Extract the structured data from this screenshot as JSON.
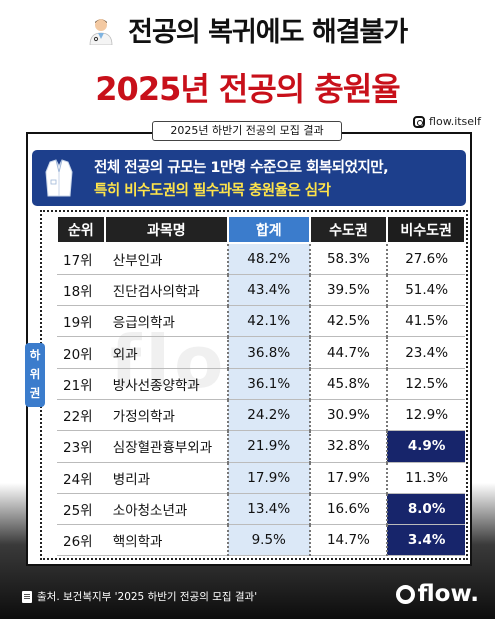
{
  "header": {
    "title_line1": "전공의 복귀에도 해결불가",
    "title_line2": "2025년 전공의 충원율",
    "handle": "flow.itself"
  },
  "panel": {
    "subtitle": "2025년 하반기 전공의 모집 결과",
    "banner_line1": "전체 전공의 규모는 1만명 수준으로 회복되었지만,",
    "banner_line2": "특히 비수도권의 필수과목 충원율은 심각"
  },
  "table": {
    "headers": [
      "순위",
      "과목명",
      "합계",
      "수도권",
      "비수도권"
    ],
    "rows": [
      {
        "rank": "17위",
        "subject": "산부인과",
        "total": "48.2%",
        "sudo": "58.3%",
        "bisudo": "27.6%",
        "dark": false
      },
      {
        "rank": "18위",
        "subject": "진단검사의학과",
        "total": "43.4%",
        "sudo": "39.5%",
        "bisudo": "51.4%",
        "dark": false
      },
      {
        "rank": "19위",
        "subject": "응급의학과",
        "total": "42.1%",
        "sudo": "42.5%",
        "bisudo": "41.5%",
        "dark": false
      },
      {
        "rank": "20위",
        "subject": "외과",
        "total": "36.8%",
        "sudo": "44.7%",
        "bisudo": "23.4%",
        "dark": false
      },
      {
        "rank": "21위",
        "subject": "방사선종양학과",
        "total": "36.1%",
        "sudo": "45.8%",
        "bisudo": "12.5%",
        "dark": false
      },
      {
        "rank": "22위",
        "subject": "가정의학과",
        "total": "24.2%",
        "sudo": "30.9%",
        "bisudo": "12.9%",
        "dark": false
      },
      {
        "rank": "23위",
        "subject": "심장혈관흉부외과",
        "total": "21.9%",
        "sudo": "32.8%",
        "bisudo": "4.9%",
        "dark": true
      },
      {
        "rank": "24위",
        "subject": "병리과",
        "total": "17.9%",
        "sudo": "17.9%",
        "bisudo": "11.3%",
        "dark": false
      },
      {
        "rank": "25위",
        "subject": "소아청소년과",
        "total": "13.4%",
        "sudo": "16.6%",
        "bisudo": "8.0%",
        "dark": true
      },
      {
        "rank": "26위",
        "subject": "핵의학과",
        "total": "9.5%",
        "sudo": "14.7%",
        "bisudo": "3.4%",
        "dark": true
      }
    ],
    "side_label": "하위권"
  },
  "footer": {
    "source": "출처. 보건복지부 '2025 하반기 전공의 모집 결과'",
    "logo": "flow."
  },
  "watermark": "flow"
}
